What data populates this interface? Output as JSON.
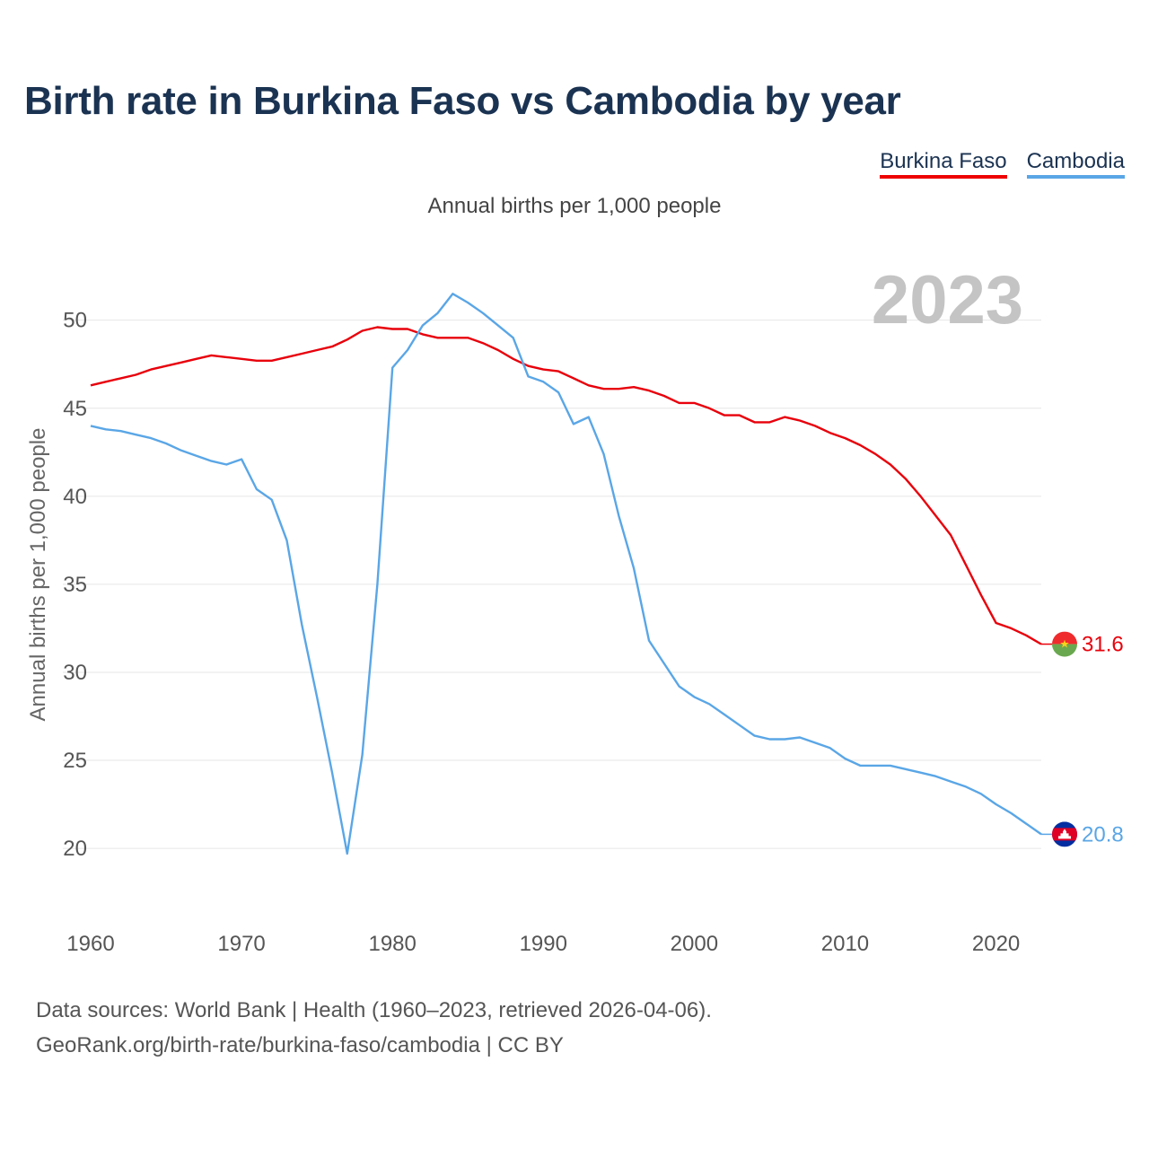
{
  "title": "Birth rate in Burkina Faso vs Cambodia by year",
  "subtitle": "Annual births per 1,000 people",
  "legend": {
    "burkina": "Burkina Faso",
    "cambodia": "Cambodia"
  },
  "year_label": "2023",
  "end_labels": {
    "burkina": "31.6",
    "cambodia": "20.8"
  },
  "colors": {
    "burkina": "#e8000b",
    "cambodia": "#5aa6e6",
    "title": "#1b3352"
  },
  "source": {
    "line1": "Data sources: World Bank | Health (1960–2023, retrieved 2026-04-06).",
    "line2": "GeoRank.org/birth-rate/burkina-faso/cambodia | CC BY"
  },
  "chart_data": {
    "type": "line",
    "title": "Birth rate in Burkina Faso vs Cambodia by year",
    "ylabel": "Annual births per 1,000 people",
    "xlabel": "",
    "xlim": [
      1960,
      2023
    ],
    "ylim": [
      17.2,
      53.4
    ],
    "xticks": [
      1960,
      1970,
      1980,
      1990,
      2000,
      2010,
      2020
    ],
    "yticks": [
      20,
      25,
      30,
      35,
      40,
      45,
      50
    ],
    "x": [
      1960,
      1961,
      1962,
      1963,
      1964,
      1965,
      1966,
      1967,
      1968,
      1969,
      1970,
      1971,
      1972,
      1973,
      1974,
      1975,
      1976,
      1977,
      1978,
      1979,
      1980,
      1981,
      1982,
      1983,
      1984,
      1985,
      1986,
      1987,
      1988,
      1989,
      1990,
      1991,
      1992,
      1993,
      1994,
      1995,
      1996,
      1997,
      1998,
      1999,
      2000,
      2001,
      2002,
      2003,
      2004,
      2005,
      2006,
      2007,
      2008,
      2009,
      2010,
      2011,
      2012,
      2013,
      2014,
      2015,
      2016,
      2017,
      2018,
      2019,
      2020,
      2021,
      2022,
      2023
    ],
    "series": [
      {
        "name": "Burkina Faso",
        "values": [
          46.3,
          46.5,
          46.7,
          46.9,
          47.2,
          47.4,
          47.6,
          47.8,
          48.0,
          47.9,
          47.8,
          47.7,
          47.7,
          47.9,
          48.1,
          48.3,
          48.5,
          48.9,
          49.4,
          49.6,
          49.5,
          49.5,
          49.2,
          49.0,
          49.0,
          49.0,
          48.7,
          48.3,
          47.8,
          47.4,
          47.2,
          47.1,
          46.7,
          46.3,
          46.1,
          46.1,
          46.2,
          46.0,
          45.7,
          45.3,
          45.3,
          45.0,
          44.6,
          44.6,
          44.2,
          44.2,
          44.5,
          44.3,
          44.0,
          43.6,
          43.3,
          42.9,
          42.4,
          41.8,
          41.0,
          40.0,
          38.9,
          37.8,
          36.1,
          34.4,
          32.8,
          32.5,
          32.1,
          31.6
        ]
      },
      {
        "name": "Cambodia",
        "values": [
          44.0,
          43.8,
          43.7,
          43.5,
          43.3,
          43.0,
          42.6,
          42.3,
          42.0,
          41.8,
          42.1,
          40.4,
          39.8,
          37.5,
          32.7,
          28.6,
          24.3,
          19.7,
          25.3,
          35.0,
          47.3,
          48.3,
          49.7,
          50.4,
          51.5,
          51.0,
          50.4,
          49.7,
          49.0,
          46.8,
          46.5,
          45.9,
          44.1,
          44.5,
          42.4,
          38.9,
          35.9,
          31.8,
          30.5,
          29.2,
          28.6,
          28.2,
          27.6,
          27.0,
          26.4,
          26.2,
          26.2,
          26.3,
          26.0,
          25.7,
          25.1,
          24.7,
          24.7,
          24.7,
          24.5,
          24.3,
          24.1,
          23.8,
          23.5,
          23.1,
          22.5,
          22.0,
          21.4,
          20.8
        ]
      }
    ]
  }
}
